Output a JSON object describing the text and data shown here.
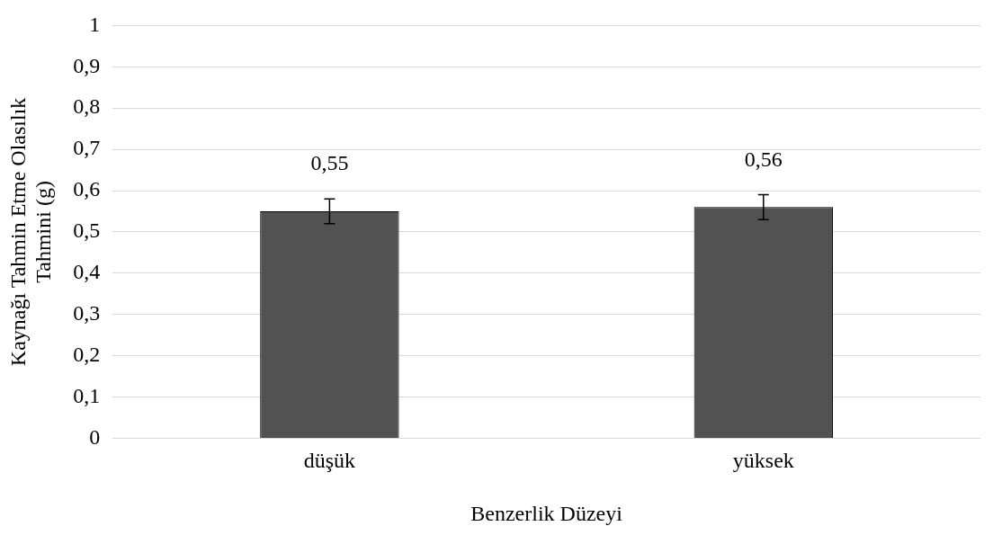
{
  "chart_data": {
    "type": "bar",
    "xlabel": "Benzerlik Düzeyi",
    "ylabel": "Kaynağı Tahmin Etme Olasılık Tahmini (g)",
    "categories": [
      "düşük",
      "yüksek"
    ],
    "values": [
      0.55,
      0.56
    ],
    "errors": [
      0.03,
      0.03
    ],
    "value_labels": [
      "0,55",
      "0,56"
    ],
    "color": "#525252",
    "ylim": [
      0,
      1
    ],
    "yticks": [
      0,
      {
        "value": 0.1,
        "label": "0,1"
      },
      {
        "value": 0.2,
        "label": "0,2"
      },
      {
        "value": 0.3,
        "label": "0,3"
      },
      {
        "value": 0.4,
        "label": "0,4"
      },
      {
        "value": 0.5,
        "label": "0,5"
      },
      {
        "value": 0.6,
        "label": "0,6"
      },
      {
        "value": 0.7,
        "label": "0,7"
      },
      {
        "value": 0.8,
        "label": "0,8"
      },
      {
        "value": 0.9,
        "label": "0,9"
      },
      1
    ],
    "grid": "y",
    "legend": false
  }
}
